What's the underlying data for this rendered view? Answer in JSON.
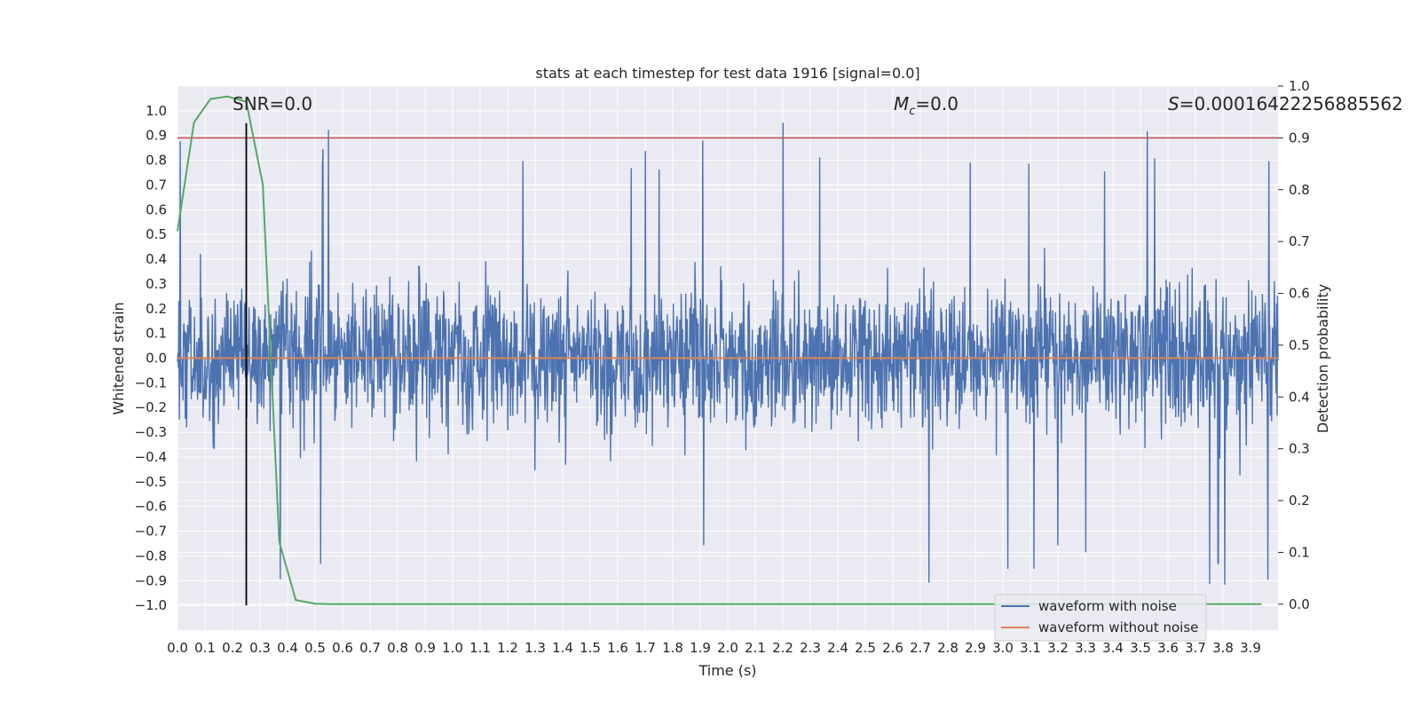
{
  "chart_data": {
    "type": "line",
    "title": "stats at each timestep for test data 1916 [signal=0.0]",
    "xlabel": "Time (s)",
    "ylabel_left": "Whitened strain",
    "ylabel_right": "Detection probability",
    "xlim": [
      0.0,
      4.0
    ],
    "ylim_left": [
      -1.1,
      1.1
    ],
    "ylim_right": [
      -0.05,
      1.0
    ],
    "x_ticks": [
      "0.0",
      "0.1",
      "0.2",
      "0.3",
      "0.4",
      "0.5",
      "0.6",
      "0.7",
      "0.8",
      "0.9",
      "1.0",
      "1.1",
      "1.2",
      "1.3",
      "1.4",
      "1.5",
      "1.6",
      "1.7",
      "1.8",
      "1.9",
      "2.0",
      "2.1",
      "2.2",
      "2.3",
      "2.4",
      "2.5",
      "2.6",
      "2.7",
      "2.8",
      "2.9",
      "3.0",
      "3.1",
      "3.2",
      "3.3",
      "3.4",
      "3.5",
      "3.6",
      "3.7",
      "3.8",
      "3.9"
    ],
    "y_ticks_left": [
      "1.0",
      "0.9",
      "0.8",
      "0.7",
      "0.6",
      "0.5",
      "0.4",
      "0.3",
      "0.2",
      "0.1",
      "0.0",
      "−0.1",
      "−0.2",
      "−0.3",
      "−0.4",
      "−0.5",
      "−0.6",
      "−0.7",
      "−0.8",
      "−0.9",
      "−1.0"
    ],
    "y_ticks_right": [
      "1.0",
      "0.9",
      "0.8",
      "0.7",
      "0.6",
      "0.5",
      "0.4",
      "0.3",
      "0.2",
      "0.1",
      "0.0"
    ],
    "annotations": {
      "snr": "SNR=0.0",
      "mc_symbol": "M",
      "mc_sub": "c",
      "mc_value": "=0.0",
      "s_symbol": "S",
      "s_value": "=0.00016422256885562"
    },
    "threshold": {
      "name": "detection threshold",
      "value": 0.9,
      "axis": "right",
      "color": "#c44e52"
    },
    "marker_line": {
      "x": 0.25,
      "y_from": -1.0,
      "y_to": 0.95,
      "color": "#000000"
    },
    "series": [
      {
        "name": "waveform with noise",
        "color": "#4c72b0",
        "axis": "left",
        "kind": "noise",
        "time_range": [
          0.0,
          4.0
        ],
        "amplitude_range": [
          -0.97,
          0.99
        ]
      },
      {
        "name": "waveform without noise",
        "color": "#dd8452",
        "axis": "left",
        "x": [
          0.0,
          4.0
        ],
        "y": [
          0.0,
          0.0
        ]
      },
      {
        "name": "detection probability",
        "color": "#55a868",
        "axis": "right",
        "x": [
          0.0,
          0.06,
          0.12,
          0.18,
          0.25,
          0.31,
          0.37,
          0.43,
          0.5,
          0.56,
          0.62,
          0.75,
          1.0,
          2.0,
          3.0,
          3.94
        ],
        "y": [
          0.72,
          0.93,
          0.975,
          0.98,
          0.97,
          0.81,
          0.12,
          0.008,
          0.001,
          0.0,
          0.0,
          0.0,
          0.0,
          0.0,
          0.0,
          0.0
        ]
      }
    ],
    "legend": {
      "position": "lower-right",
      "entries": [
        {
          "label": "waveform with noise",
          "color": "#4c72b0"
        },
        {
          "label": "waveform without noise",
          "color": "#dd8452"
        }
      ]
    }
  }
}
